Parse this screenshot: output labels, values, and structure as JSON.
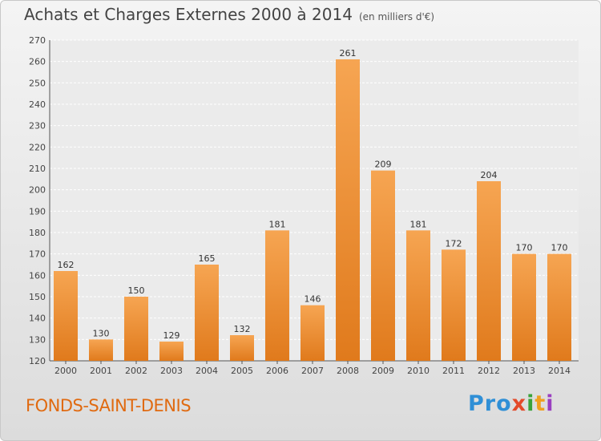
{
  "header": {
    "title": "Achats et Charges Externes 2000 à 2014",
    "subtitle": "(en milliers d'€)"
  },
  "footer": {
    "place": "FONDS-SAINT-DENIS",
    "logo": [
      "Pro",
      "x",
      "i",
      "t",
      "i"
    ]
  },
  "colors": {
    "bar_light": "#f6a552",
    "bar_dark": "#e07a1c",
    "place_text": "#e06a10"
  },
  "chart_data": {
    "type": "bar",
    "title": "Achats et Charges Externes 2000 à 2014",
    "subtitle": "(en milliers d'€)",
    "categories": [
      "2000",
      "2001",
      "2002",
      "2003",
      "2004",
      "2005",
      "2006",
      "2007",
      "2008",
      "2009",
      "2010",
      "2011",
      "2012",
      "2013",
      "2014"
    ],
    "values": [
      162,
      130,
      150,
      129,
      165,
      132,
      181,
      146,
      261,
      209,
      181,
      172,
      204,
      170,
      170
    ],
    "ylim": [
      120,
      270
    ],
    "yticks": [
      120,
      130,
      140,
      150,
      160,
      170,
      180,
      190,
      200,
      210,
      220,
      230,
      240,
      250,
      260,
      270
    ],
    "grid": true,
    "legend": "none"
  }
}
